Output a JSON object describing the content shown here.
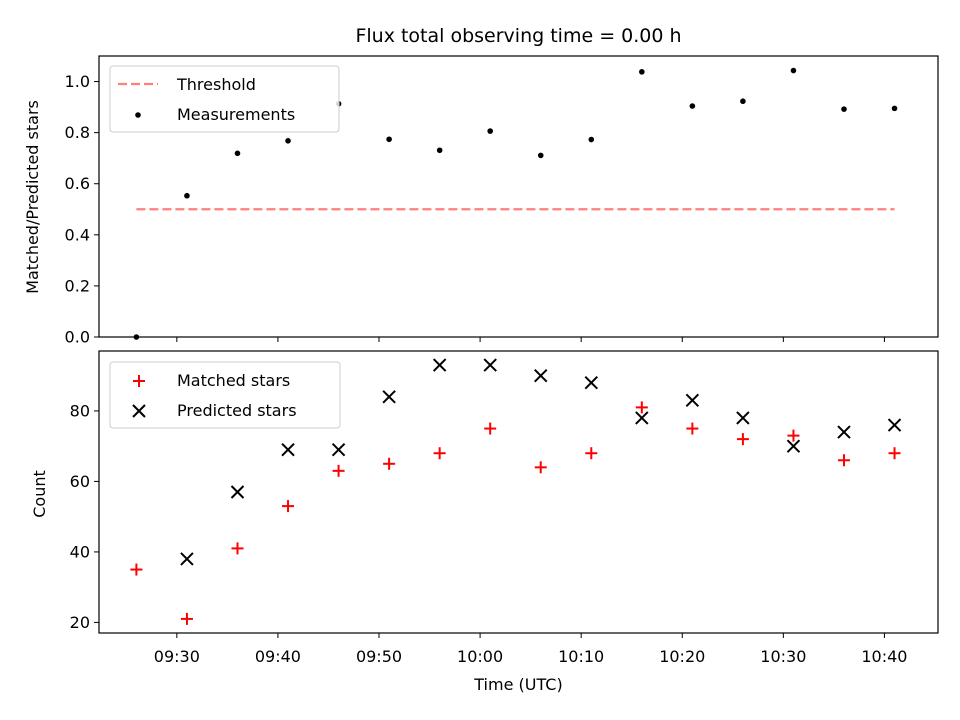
{
  "chart_data": [
    {
      "type": "scatter",
      "title": "Flux total observing time = 0.00 h",
      "xlabel": "",
      "ylabel": "Matched/Predicted stars",
      "ylim": [
        0.0,
        1.1
      ],
      "yticks": [
        0.0,
        0.2,
        0.4,
        0.6,
        0.8,
        1.0
      ],
      "ytick_labels": [
        "0.0",
        "0.2",
        "0.4",
        "0.6",
        "0.8",
        "1.0"
      ],
      "legend_position": "upper-left",
      "series": [
        {
          "name": "Threshold",
          "kind": "dashed-line",
          "color": "#ff7f7f",
          "x": [
            "09:26",
            "10:41"
          ],
          "values": [
            0.5,
            0.5
          ]
        },
        {
          "name": "Measurements",
          "kind": "dot",
          "color": "#000000",
          "x": [
            "09:26",
            "09:31",
            "09:36",
            "09:41",
            "09:46",
            "09:51",
            "09:56",
            "10:01",
            "10:06",
            "10:11",
            "10:16",
            "10:21",
            "10:26",
            "10:31",
            "10:36",
            "10:41"
          ],
          "values": [
            0.0,
            0.553,
            0.719,
            0.768,
            0.913,
            0.774,
            0.731,
            0.806,
            0.711,
            0.773,
            1.038,
            0.904,
            0.923,
            1.043,
            0.892,
            0.895
          ]
        }
      ]
    },
    {
      "type": "scatter",
      "title": "",
      "xlabel": "Time (UTC)",
      "ylabel": "Count",
      "ylim": [
        17,
        97
      ],
      "yticks": [
        20,
        40,
        60,
        80
      ],
      "ytick_labels": [
        "20",
        "40",
        "60",
        "80"
      ],
      "legend_position": "upper-left",
      "series": [
        {
          "name": "Matched stars",
          "kind": "plus",
          "color": "#ff0000",
          "x": [
            "09:26",
            "09:31",
            "09:36",
            "09:41",
            "09:46",
            "09:51",
            "09:56",
            "10:01",
            "10:06",
            "10:11",
            "10:16",
            "10:21",
            "10:26",
            "10:31",
            "10:36",
            "10:41"
          ],
          "values": [
            35,
            21,
            41,
            53,
            63,
            65,
            68,
            75,
            64,
            68,
            81,
            75,
            72,
            73,
            66,
            68
          ]
        },
        {
          "name": "Predicted stars",
          "kind": "x",
          "color": "#000000",
          "x": [
            "09:26",
            "09:31",
            "09:36",
            "09:41",
            "09:46",
            "09:51",
            "09:56",
            "10:01",
            "10:06",
            "10:11",
            "10:16",
            "10:21",
            "10:26",
            "10:31",
            "10:36",
            "10:41"
          ],
          "values": [
            null,
            38,
            57,
            69,
            69,
            84,
            93,
            93,
            90,
            88,
            78,
            83,
            78,
            70,
            74,
            76
          ]
        }
      ]
    }
  ],
  "shared_x": {
    "xlim_minutes": [
      562.3,
      645.3
    ],
    "ticks_minutes": [
      570,
      580,
      590,
      600,
      610,
      620,
      630,
      640
    ],
    "tick_labels": [
      "09:30",
      "09:40",
      "09:50",
      "10:00",
      "10:10",
      "10:20",
      "10:30",
      "10:40"
    ]
  }
}
